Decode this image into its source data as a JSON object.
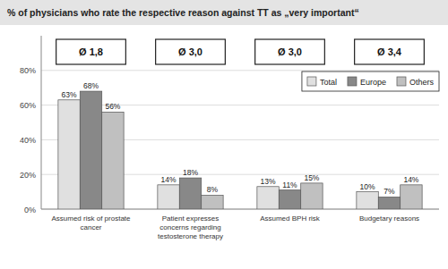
{
  "chart_data": {
    "type": "bar",
    "title": "% of physicians who rate the respective reason against TT as „very important“",
    "categories": [
      "Assumed risk of prostate\ncancer",
      "Patient expresses\nconcerns regarding\ntestosterone therapy",
      "Assumed BPH risk",
      "Budgetary reasons"
    ],
    "series": [
      {
        "name": "Total",
        "color": "#e0e0e0",
        "values": [
          63,
          14,
          13,
          10
        ],
        "value_labels": [
          "63%",
          "14%",
          "13%",
          "10%"
        ]
      },
      {
        "name": "Europe",
        "color": "#888888",
        "values": [
          68,
          18,
          11,
          7
        ],
        "value_labels": [
          "68%",
          "18%",
          "11%",
          "7%"
        ]
      },
      {
        "name": "Others",
        "color": "#c0c0c0",
        "values": [
          56,
          8,
          15,
          14
        ],
        "value_labels": [
          "56%",
          "8%",
          "15%",
          "14%"
        ]
      }
    ],
    "annotations": [
      "Ø 1,8",
      "Ø 3,0",
      "Ø 3,0",
      "Ø 3,4"
    ],
    "ylim": [
      0,
      100
    ],
    "yticks": [
      {
        "value": 0,
        "label": "0%"
      },
      {
        "value": 20,
        "label": "20%"
      },
      {
        "value": 40,
        "label": "40%"
      },
      {
        "value": 60,
        "label": "60%"
      },
      {
        "value": 80,
        "label": "80%"
      }
    ],
    "grid": true,
    "legend": "top-right",
    "data_labels": true
  }
}
